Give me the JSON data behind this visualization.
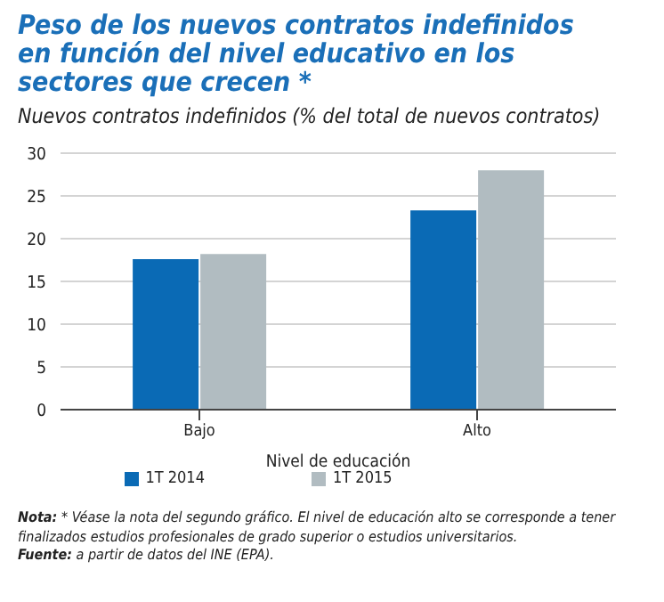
{
  "chart_data": {
    "type": "bar",
    "title": "Peso de los nuevos contratos indefinidos en función del nivel educativo en los sectores que crecen *",
    "subtitle": "Nuevos contratos indefinidos (% del total de nuevos contratos)",
    "xlabel": "Nivel de educación",
    "categories": [
      "Bajo",
      "Alto"
    ],
    "series": [
      {
        "name": "1T 2014",
        "color": "#0a6ab5",
        "values": [
          17.6,
          23.3
        ]
      },
      {
        "name": "1T 2015",
        "color": "#b1bcc1",
        "values": [
          18.2,
          28.0
        ]
      }
    ],
    "ylim": [
      0,
      30
    ],
    "yticks": [
      0,
      5,
      10,
      15,
      20,
      25,
      30
    ],
    "grid": "y",
    "legend": "bottom",
    "annotations": [
      "Nota: * Véase la nota del segundo gráfico. El nivel de educación alto se corresponde a tener finalizados estudios profesionales de grado superior o estudios universitarios.",
      "Fuente: a partir de datos del INE (EPA)."
    ]
  }
}
